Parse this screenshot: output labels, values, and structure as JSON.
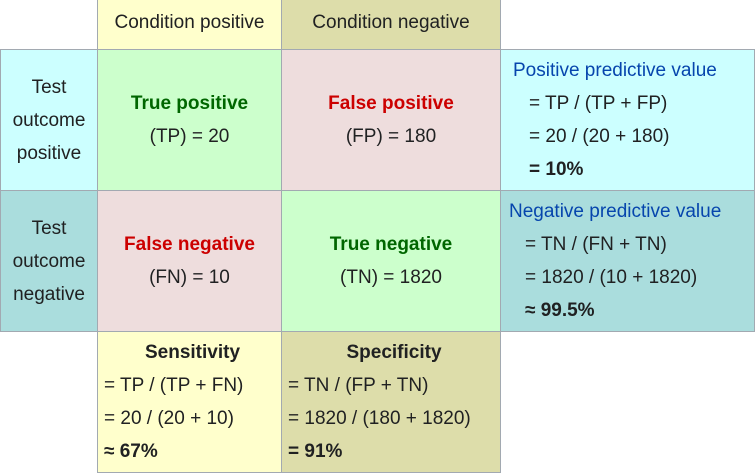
{
  "columns": {
    "condition_positive": "Condition positive",
    "condition_negative": "Condition negative"
  },
  "rows": {
    "test_positive": [
      "Test",
      "outcome",
      "positive"
    ],
    "test_negative": [
      "Test",
      "outcome",
      "negative"
    ]
  },
  "cells": {
    "true_positive": {
      "title": "True positive",
      "value": "(TP) = 20"
    },
    "false_positive": {
      "title": "False positive",
      "value": "(FP) = 180"
    },
    "false_negative": {
      "title": "False negative",
      "value": "(FN) = 10"
    },
    "true_negative": {
      "title": "True negative",
      "value": "(TN) = 1820"
    }
  },
  "ppv": {
    "title": "Positive predictive value",
    "formula": "= TP / (TP + FP)",
    "computation": "= 20 / (20 + 180)",
    "result": "= 10%"
  },
  "npv": {
    "title": "Negative predictive value",
    "formula": "= TN / (FN + TN)",
    "computation": "= 1820 / (10 + 1820)",
    "result": "≈ 99.5%"
  },
  "sensitivity": {
    "title": "Sensitivity",
    "formula": "= TP / (TP + FN)",
    "computation": "= 20 / (20 + 10)",
    "result": "≈ 67%"
  },
  "specificity": {
    "title": "Specificity",
    "formula": "= TN / (FP + TN)",
    "computation": "= 1820 / (180 + 1820)",
    "result": "= 91%"
  },
  "colors": {
    "green_text": "#006600",
    "red_text": "#cc0000",
    "blue_text": "#0645ad",
    "green_cell": "#ccffcc",
    "red_cell": "#eedddd",
    "light_yellow": "#ffffcc",
    "olive": "#ddddaa",
    "light_cyan": "#ccffff",
    "teal": "#aadddd"
  }
}
